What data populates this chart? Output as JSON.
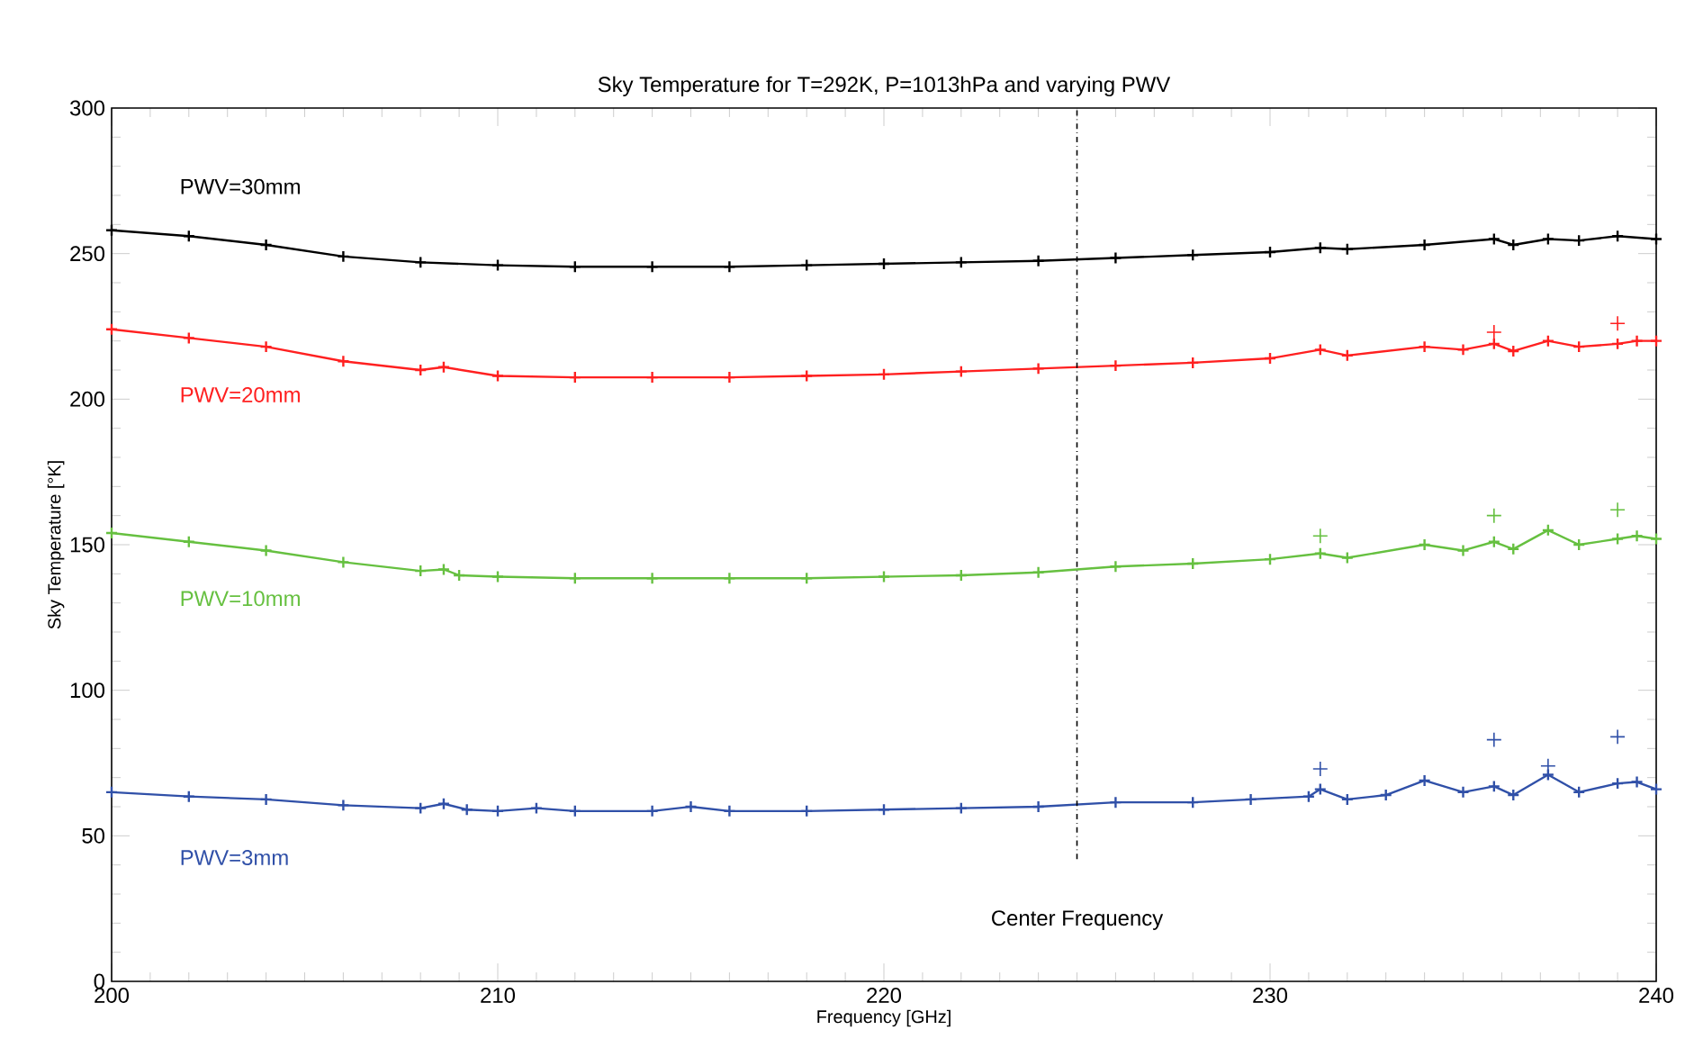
{
  "chart_data": {
    "type": "line",
    "title": "Sky Temperature for T=292K, P=1013hPa and varying PWV",
    "xlabel": "Frequency [GHz]",
    "ylabel": "Sky Temperature [°K]",
    "xlim": [
      200,
      240
    ],
    "xticks": [
      200,
      210,
      220,
      230,
      240
    ],
    "ylim": [
      0,
      300
    ],
    "yticks": [
      0,
      50,
      100,
      150,
      200,
      250,
      300
    ],
    "marker": "cross",
    "line_style": "solid",
    "grid": false,
    "series": [
      {
        "name": "PWV=30mm",
        "color": "#000000",
        "x": [
          200,
          202,
          204,
          206,
          208,
          210,
          212,
          214,
          216,
          218,
          220,
          222,
          224,
          226,
          228,
          230,
          231.3,
          232,
          234,
          235.8,
          236.3,
          237.2,
          238,
          239,
          240
        ],
        "values": [
          258,
          256,
          253,
          249,
          247,
          246,
          245.5,
          245.5,
          245.5,
          246,
          246.5,
          247,
          247.5,
          248.5,
          249.5,
          250.5,
          252,
          251.5,
          253,
          255,
          253,
          255,
          254.5,
          256,
          255
        ]
      },
      {
        "name": "PWV=20mm",
        "color": "#ff2020",
        "x": [
          200,
          202,
          204,
          206,
          208,
          208.6,
          210,
          212,
          214,
          216,
          218,
          220,
          222,
          224,
          226,
          228,
          230,
          231.3,
          232,
          234,
          235,
          235.8,
          236.3,
          237.2,
          238,
          239,
          239.5,
          240
        ],
        "values": [
          224,
          221,
          218,
          213,
          210,
          211,
          208,
          207.5,
          207.5,
          207.5,
          208,
          208.5,
          209.5,
          210.5,
          211.5,
          212.5,
          214,
          217,
          215,
          218,
          217,
          219,
          216.5,
          220,
          218,
          219,
          220,
          220
        ]
      },
      {
        "name": "PWV=10mm",
        "color": "#66c040",
        "x": [
          200,
          202,
          204,
          206,
          208,
          208.6,
          209,
          210,
          212,
          214,
          216,
          218,
          220,
          222,
          224,
          226,
          228,
          230,
          231.3,
          232,
          234,
          235,
          235.8,
          236.3,
          237.2,
          238,
          239,
          239.5,
          240
        ],
        "values": [
          154,
          151,
          148,
          144,
          141,
          141.5,
          139.5,
          139,
          138.5,
          138.5,
          138.5,
          138.5,
          139,
          139.5,
          140.5,
          142.5,
          143.5,
          145,
          147,
          145.5,
          150,
          148,
          151,
          148.5,
          155,
          150,
          152,
          153,
          152
        ]
      },
      {
        "name": "PWV=3mm",
        "color": "#3050a8",
        "x": [
          200,
          202,
          204,
          206,
          208,
          208.6,
          209.2,
          210,
          211,
          212,
          214,
          215,
          216,
          218,
          220,
          222,
          224,
          226,
          228,
          229.5,
          231,
          231.3,
          232,
          233,
          234,
          235,
          235.8,
          236.3,
          237.2,
          238,
          239,
          239.5,
          240
        ],
        "values": [
          65,
          63.5,
          62.5,
          60.5,
          59.5,
          61,
          59,
          58.5,
          59.5,
          58.5,
          58.5,
          60,
          58.5,
          58.5,
          59,
          59.5,
          60,
          61.5,
          61.5,
          62.5,
          63.5,
          66,
          62.5,
          64,
          69,
          65,
          67,
          64,
          71,
          65,
          68,
          68.5,
          66
        ]
      },
      {
        "type": "scatter",
        "color": "#ff2020",
        "x": [
          235.8,
          239
        ],
        "values": [
          223,
          226
        ]
      },
      {
        "type": "scatter",
        "color": "#66c040",
        "x": [
          231.3,
          235.8,
          239
        ],
        "values": [
          153,
          160,
          162
        ]
      },
      {
        "type": "scatter",
        "color": "#3050a8",
        "x": [
          231.3,
          235.8,
          237.2,
          239
        ],
        "values": [
          73,
          83,
          74,
          84
        ]
      }
    ],
    "ref_lines": [
      {
        "axis": "x",
        "value": 225,
        "label": "Center Frequency",
        "color": "#000000",
        "line_style": "dashdotted"
      }
    ]
  }
}
